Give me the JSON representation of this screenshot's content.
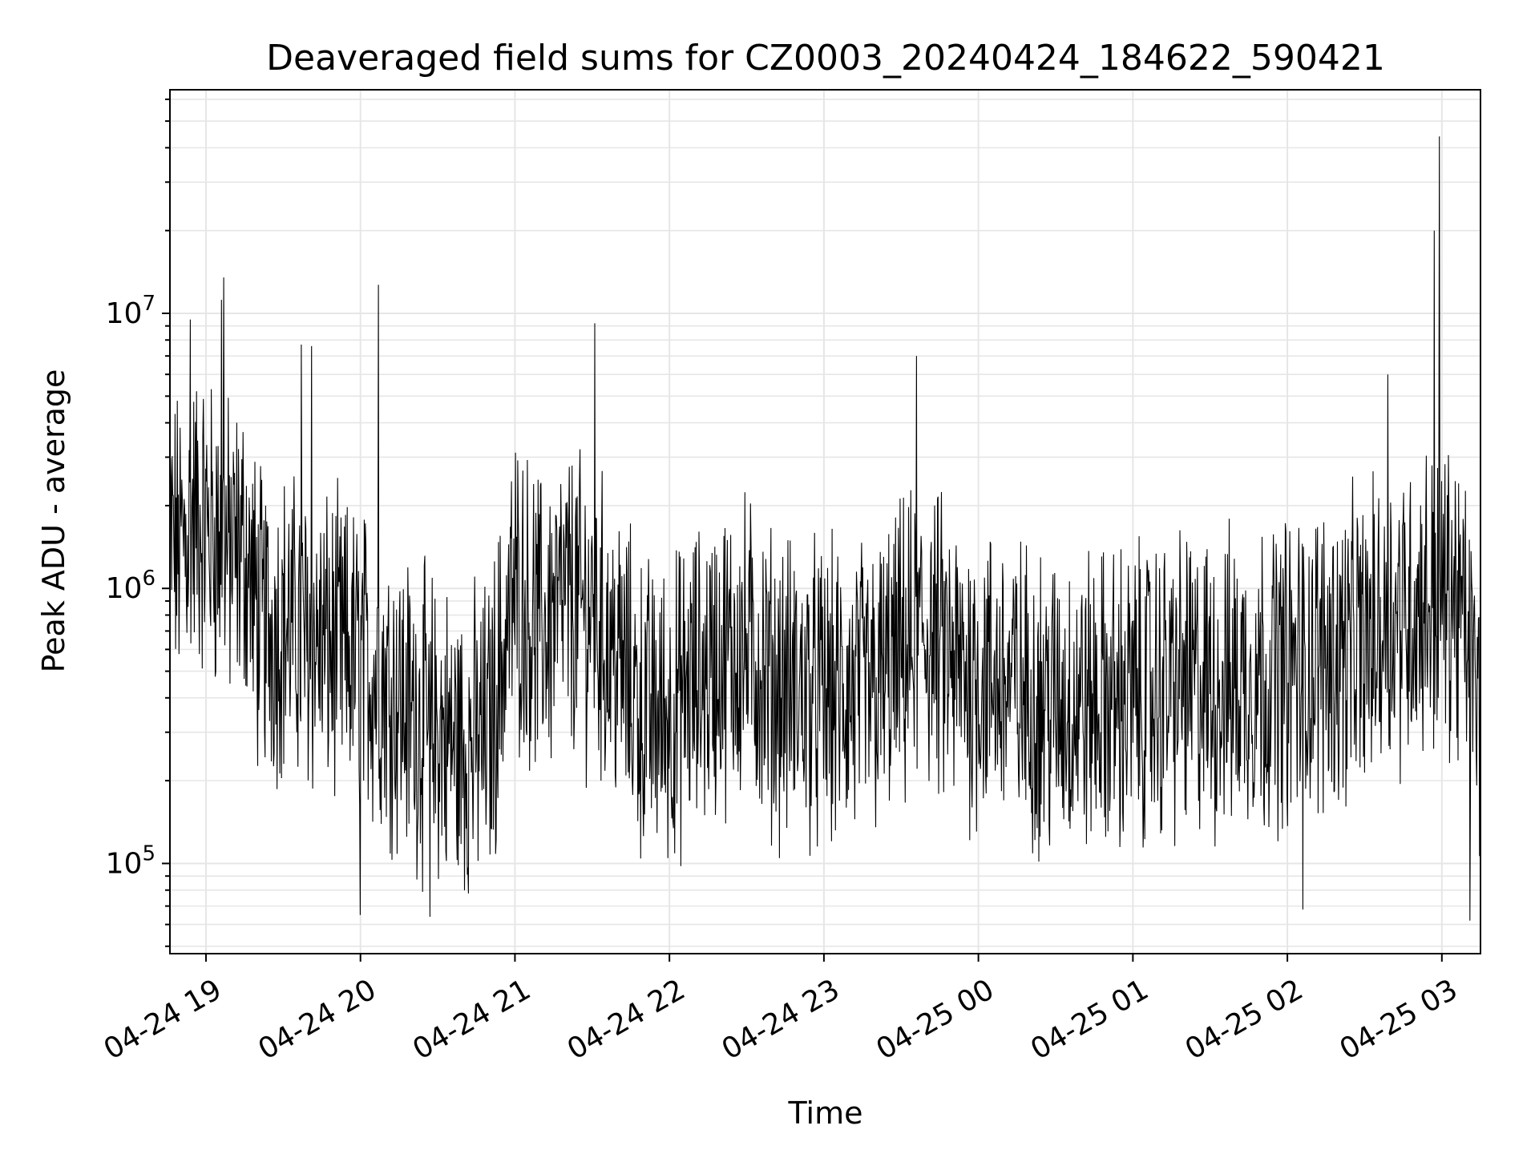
{
  "chart_data": {
    "type": "line",
    "title": "Deaveraged field sums for CZ0003_20240424_184622_590421",
    "xlabel": "Time",
    "ylabel": "Peak ADU - average",
    "y_scale": "log",
    "ylim": [
      47000,
      65000000
    ],
    "xlim": [
      "04-24 18:46",
      "04-25 03:15"
    ],
    "grid": true,
    "line_color": "#000000",
    "grid_color": "#e6e6e6",
    "x_ticks": [
      {
        "value": "04-24 19:00",
        "label": "04-24 19"
      },
      {
        "value": "04-24 20:00",
        "label": "04-24 20"
      },
      {
        "value": "04-24 21:00",
        "label": "04-24 21"
      },
      {
        "value": "04-24 22:00",
        "label": "04-24 22"
      },
      {
        "value": "04-24 23:00",
        "label": "04-24 23"
      },
      {
        "value": "04-25 00:00",
        "label": "04-25 00"
      },
      {
        "value": "04-25 01:00",
        "label": "04-25 01"
      },
      {
        "value": "04-25 02:00",
        "label": "04-25 02"
      },
      {
        "value": "04-25 03:00",
        "label": "04-25 03"
      }
    ],
    "y_ticks": [
      {
        "value": 100000,
        "base": "10",
        "exp": "5"
      },
      {
        "value": 1000000,
        "base": "10",
        "exp": "6"
      },
      {
        "value": 10000000,
        "base": "10",
        "exp": "7"
      }
    ],
    "series": [
      {
        "x": [
          "04-24 18:46",
          "04-24 18:50",
          "04-24 18:55",
          "04-24 19:00",
          "04-24 19:05",
          "04-24 19:10",
          "04-24 19:15",
          "04-24 19:20",
          "04-24 19:25",
          "04-24 19:30",
          "04-24 19:40",
          "04-24 19:50",
          "04-24 20:00",
          "04-24 20:10",
          "04-24 20:20",
          "04-24 20:30",
          "04-24 20:40",
          "04-24 20:50",
          "04-24 21:00",
          "04-24 21:10",
          "04-24 21:20",
          "04-24 21:30",
          "04-24 21:40",
          "04-24 21:50",
          "04-24 22:00",
          "04-24 22:10",
          "04-24 22:20",
          "04-24 22:30",
          "04-24 22:40",
          "04-24 22:50",
          "04-24 23:00",
          "04-24 23:10",
          "04-24 23:20",
          "04-24 23:30",
          "04-24 23:40",
          "04-24 23:50",
          "04-25 00:00",
          "04-25 00:10",
          "04-25 00:20",
          "04-25 00:30",
          "04-25 00:40",
          "04-25 00:50",
          "04-25 01:00",
          "04-25 01:10",
          "04-25 01:20",
          "04-25 01:30",
          "04-25 01:40",
          "04-25 01:50",
          "04-25 02:00",
          "04-25 02:10",
          "04-25 02:20",
          "04-25 02:30",
          "04-25 02:40",
          "04-25 02:50",
          "04-25 03:00",
          "04-25 03:05",
          "04-25 03:10",
          "04-25 03:14"
        ],
        "y": [
          1500000,
          1400000,
          1800000,
          1700000,
          1500000,
          1300000,
          1400000,
          800000,
          700000,
          750000,
          650000,
          600000,
          550000,
          450000,
          350000,
          300000,
          260000,
          300000,
          1000000,
          700000,
          900000,
          800000,
          550000,
          350000,
          350000,
          450000,
          550000,
          600000,
          450000,
          420000,
          400000,
          400000,
          420000,
          550000,
          700000,
          500000,
          480000,
          450000,
          400000,
          380000,
          380000,
          380000,
          400000,
          420000,
          450000,
          430000,
          450000,
          480000,
          500000,
          550000,
          580000,
          620000,
          780000,
          850000,
          950000,
          900000,
          650000,
          350000
        ]
      }
    ],
    "spikes": [
      {
        "x": "04-24 18:54",
        "y": 9500000
      },
      {
        "x": "04-24 19:06",
        "y": 11200000
      },
      {
        "x": "04-24 19:07",
        "y": 13500000
      },
      {
        "x": "04-24 19:37",
        "y": 7700000
      },
      {
        "x": "04-24 19:41",
        "y": 7600000
      },
      {
        "x": "04-24 20:07",
        "y": 12700000
      },
      {
        "x": "04-24 21:31",
        "y": 9200000
      },
      {
        "x": "04-24 23:36",
        "y": 7000000
      },
      {
        "x": "04-25 02:39",
        "y": 6000000
      },
      {
        "x": "04-25 02:57",
        "y": 20000000
      },
      {
        "x": "04-25 02:59",
        "y": 44000000
      },
      {
        "x": "04-24 20:00",
        "y": 65000
      },
      {
        "x": "04-24 20:27",
        "y": 64000
      },
      {
        "x": "04-25 02:06",
        "y": 68000
      },
      {
        "x": "04-25 03:11",
        "y": 62000
      }
    ]
  }
}
